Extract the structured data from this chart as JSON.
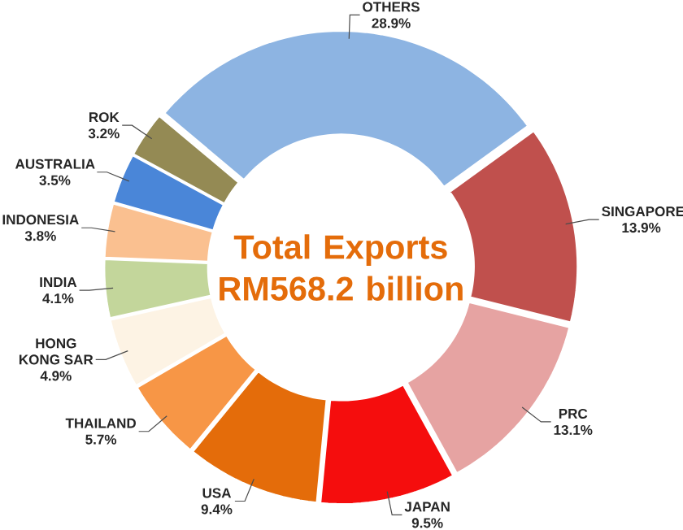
{
  "chart_data": {
    "type": "donut",
    "title": "Total Exports RM568.2 billion",
    "categories": [
      "OTHERS",
      "SINGAPORE",
      "PRC",
      "JAPAN",
      "USA",
      "THAILAND",
      "HONG KONG SAR",
      "INDIA",
      "INDONESIA",
      "AUSTRALIA",
      "ROK"
    ],
    "values": [
      28.9,
      13.9,
      13.1,
      9.5,
      9.4,
      5.7,
      4.9,
      4.1,
      3.8,
      3.5,
      3.2
    ],
    "value_labels": [
      "28.9%",
      "13.9%",
      "13.1%",
      "9.5%",
      "9.4%",
      "5.7%",
      "4.9%",
      "4.1%",
      "3.8%",
      "3.5%",
      "3.2%"
    ],
    "colors": [
      "#8db4e2",
      "#c0504d",
      "#e6a3a2",
      "#f50d0d",
      "#e46c0a",
      "#f79646",
      "#fdf3e4",
      "#c3d69b",
      "#fac090",
      "#4a86d8",
      "#948a54"
    ]
  }
}
